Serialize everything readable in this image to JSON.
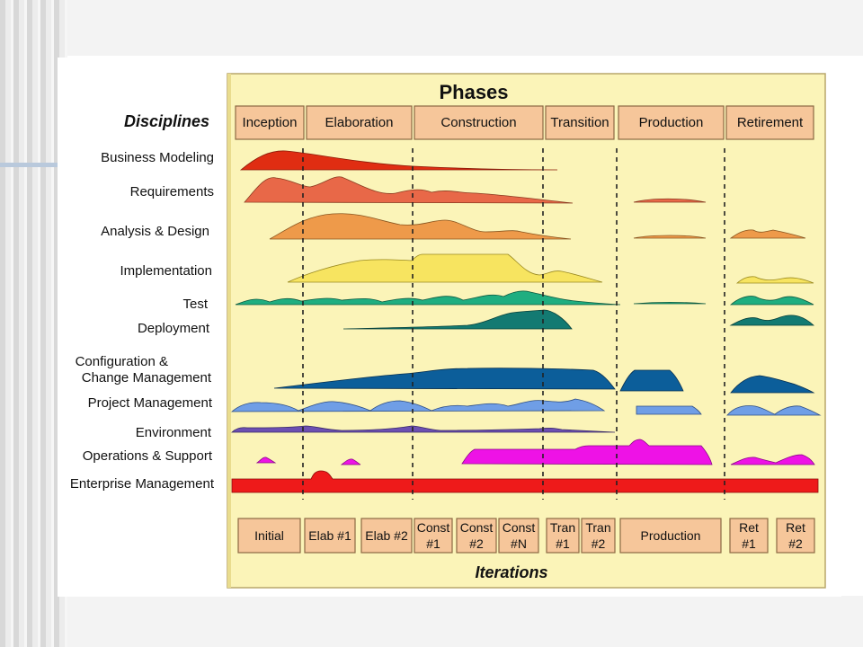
{
  "colors": {
    "panel_bg": "#fbf4b8",
    "box_fill": "#f6c69a",
    "box_stroke": "#8d6a44",
    "dash": "#222222",
    "text": "#111111"
  },
  "diagram": {
    "phases_title": "Phases",
    "disciplines_title": "Disciplines",
    "iterations_title": "Iterations",
    "phases": [
      {
        "label": "Inception"
      },
      {
        "label": "Elaboration"
      },
      {
        "label": "Construction"
      },
      {
        "label": "Transition"
      },
      {
        "label": "Production"
      },
      {
        "label": "Retirement"
      }
    ],
    "disciplines": [
      {
        "label": "Business Modeling",
        "color": "#e02d12"
      },
      {
        "label": "Requirements",
        "color": "#e86848"
      },
      {
        "label": "Analysis & Design",
        "color": "#ee9a4a"
      },
      {
        "label": "Implementation",
        "color": "#f7e460"
      },
      {
        "label": "Test",
        "color": "#1fae80"
      },
      {
        "label": "Deployment",
        "color": "#137a72"
      },
      {
        "label": "Configuration &",
        "color": "#0c5e9a"
      },
      {
        "label": "Change Management",
        "color": "#0c5e9a"
      },
      {
        "label": "Project Management",
        "color": "#6f9ee6"
      },
      {
        "label": "Environment",
        "color": "#6b4fb2"
      },
      {
        "label": "Operations & Support",
        "color": "#ee12e6"
      },
      {
        "label": "Enterprise Management",
        "color": "#ee1a1a"
      }
    ],
    "iterations": [
      {
        "lines": [
          "Initial"
        ]
      },
      {
        "lines": [
          "Elab #1"
        ]
      },
      {
        "lines": [
          "Elab #2"
        ]
      },
      {
        "lines": [
          "Const",
          "#1"
        ]
      },
      {
        "lines": [
          "Const",
          "#2"
        ]
      },
      {
        "lines": [
          "Const",
          "#N"
        ]
      },
      {
        "lines": [
          "Tran",
          "#1"
        ]
      },
      {
        "lines": [
          "Tran",
          "#2"
        ]
      },
      {
        "lines": [
          "Production"
        ]
      },
      {
        "lines": [
          "Ret",
          "#1"
        ]
      },
      {
        "lines": [
          "Ret",
          "#2"
        ]
      }
    ]
  }
}
